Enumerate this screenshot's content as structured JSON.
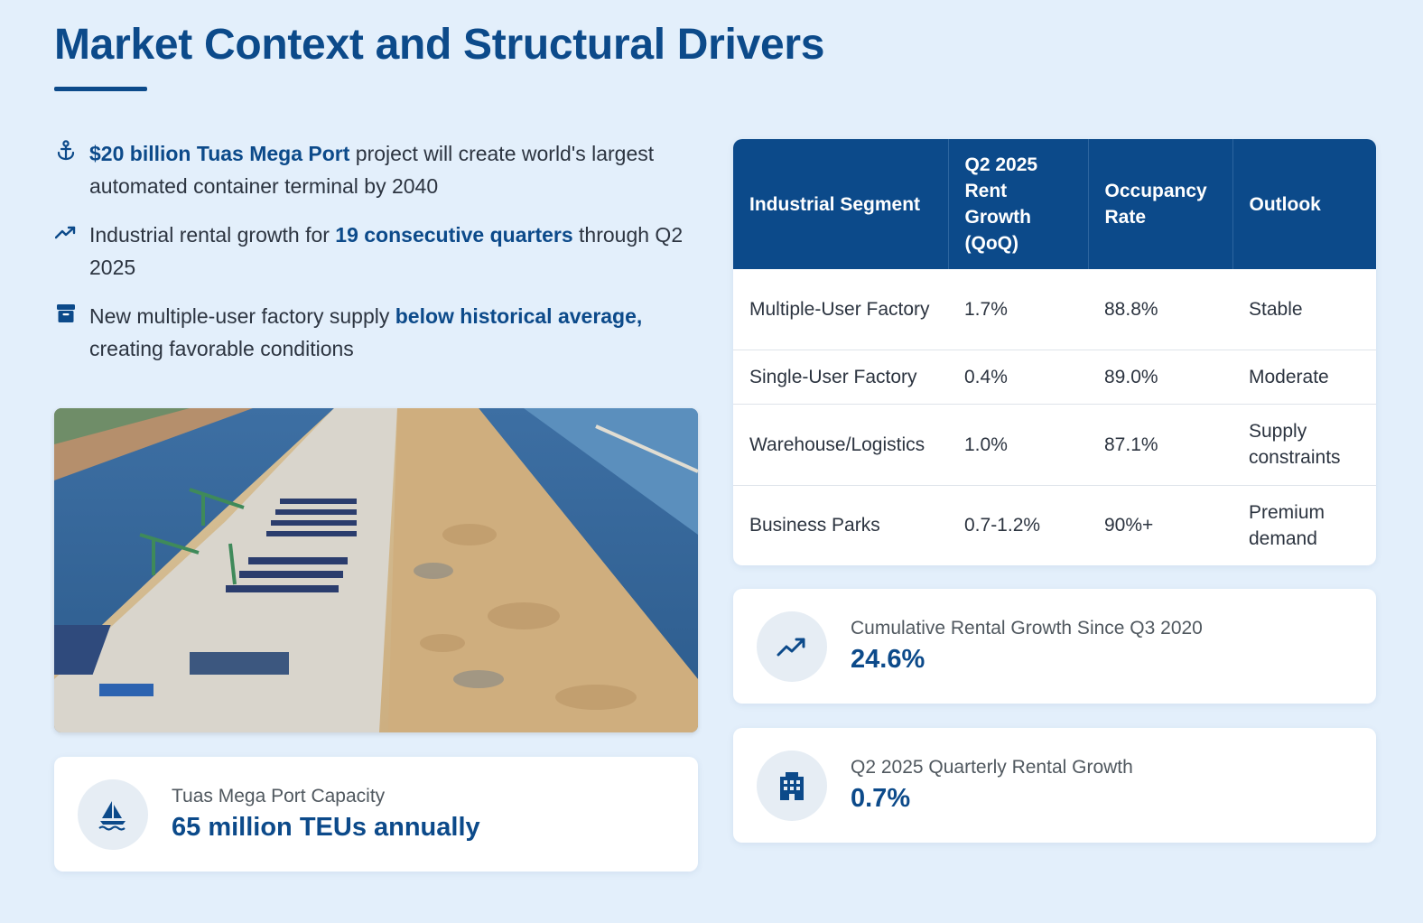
{
  "page": {
    "title": "Market Context and Structural Drivers"
  },
  "bullets": [
    {
      "icon": "anchor-icon",
      "bold": "$20 billion Tuas Mega Port",
      "after": " project will create world's largest automated container terminal by 2040"
    },
    {
      "icon": "trending-up-icon",
      "before": "Industrial rental growth for ",
      "bold": "19 consecutive quarters",
      "after": " through Q2 2025"
    },
    {
      "icon": "archive-box-icon",
      "before": "New multiple-user factory supply ",
      "bold": "below historical average,",
      "after": " creating favorable conditions"
    }
  ],
  "image": {
    "alt": "Aerial view of Tuas Mega Port construction"
  },
  "capacity_card": {
    "icon": "ship-icon",
    "label": "Tuas Mega Port Capacity",
    "value": "65 million TEUs annually"
  },
  "table": {
    "headers": [
      "Industrial Segment",
      "Q2 2025 Rent Growth (QoQ)",
      "Occupancy Rate",
      "Outlook"
    ],
    "rows": [
      [
        "Multiple-User Factory",
        "1.7%",
        "88.8%",
        "Stable"
      ],
      [
        "Single-User Factory",
        "0.4%",
        "89.0%",
        "Moderate"
      ],
      [
        "Warehouse/Logistics",
        "1.0%",
        "87.1%",
        "Supply constraints"
      ],
      [
        "Business Parks",
        "0.7-1.2%",
        "90%+",
        "Premium demand"
      ]
    ]
  },
  "stats": [
    {
      "icon": "trending-up-icon",
      "label": "Cumulative Rental Growth Since Q3 2020",
      "value": "24.6%"
    },
    {
      "icon": "building-icon",
      "label": "Q2 2025 Quarterly Rental Growth",
      "value": "0.7%"
    }
  ],
  "colors": {
    "background": "#e3effb",
    "accent": "#0c4a8a",
    "text": "#2c3440"
  }
}
